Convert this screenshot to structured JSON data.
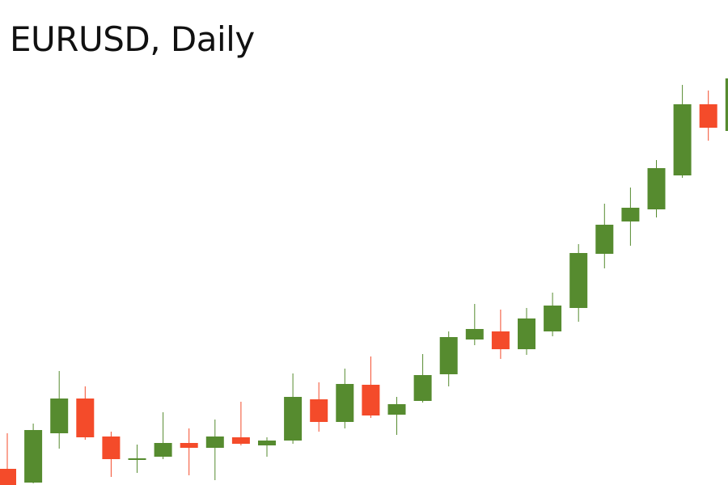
{
  "chart_data": {
    "type": "candlestick",
    "title": "EURUSD, Daily",
    "xlabel": "",
    "ylabel": "",
    "grid": false,
    "ylim": [
      0,
      600
    ],
    "colors": {
      "up": "#568b2f",
      "down": "#f44b2a"
    },
    "candles": [
      {
        "open": 20,
        "high": 64,
        "low": -5,
        "close": 0
      },
      {
        "open": 3,
        "high": 76,
        "low": 2,
        "close": 68
      },
      {
        "open": 64,
        "high": 141,
        "low": 45,
        "close": 107
      },
      {
        "open": 107,
        "high": 122,
        "low": 56,
        "close": 59
      },
      {
        "open": 60,
        "high": 66,
        "low": 10,
        "close": 32
      },
      {
        "open": 31,
        "high": 50,
        "low": 15,
        "close": 33
      },
      {
        "open": 35,
        "high": 90,
        "low": 32,
        "close": 52
      },
      {
        "open": 52,
        "high": 70,
        "low": 12,
        "close": 46
      },
      {
        "open": 46,
        "high": 81,
        "low": 6,
        "close": 60
      },
      {
        "open": 59,
        "high": 103,
        "low": 49,
        "close": 51
      },
      {
        "open": 49,
        "high": 59,
        "low": 35,
        "close": 55
      },
      {
        "open": 55,
        "high": 138,
        "low": 51,
        "close": 109
      },
      {
        "open": 106,
        "high": 127,
        "low": 66,
        "close": 78
      },
      {
        "open": 78,
        "high": 144,
        "low": 70,
        "close": 125
      },
      {
        "open": 124,
        "high": 159,
        "low": 83,
        "close": 86
      },
      {
        "open": 87,
        "high": 109,
        "low": 62,
        "close": 100
      },
      {
        "open": 104,
        "high": 162,
        "low": 102,
        "close": 136
      },
      {
        "open": 137,
        "high": 190,
        "low": 122,
        "close": 183
      },
      {
        "open": 180,
        "high": 224,
        "low": 173,
        "close": 193
      },
      {
        "open": 190,
        "high": 217,
        "low": 156,
        "close": 168
      },
      {
        "open": 168,
        "high": 219,
        "low": 161,
        "close": 206
      },
      {
        "open": 190,
        "high": 238,
        "low": 184,
        "close": 222
      },
      {
        "open": 219,
        "high": 298,
        "low": 202,
        "close": 287
      },
      {
        "open": 286,
        "high": 348,
        "low": 268,
        "close": 322
      },
      {
        "open": 326,
        "high": 368,
        "low": 296,
        "close": 343
      },
      {
        "open": 341,
        "high": 402,
        "low": 331,
        "close": 392
      },
      {
        "open": 383,
        "high": 495,
        "low": 380,
        "close": 471
      },
      {
        "open": 471,
        "high": 488,
        "low": 426,
        "close": 442
      },
      {
        "open": 438,
        "high": 503,
        "low": 436,
        "close": 503
      }
    ]
  }
}
